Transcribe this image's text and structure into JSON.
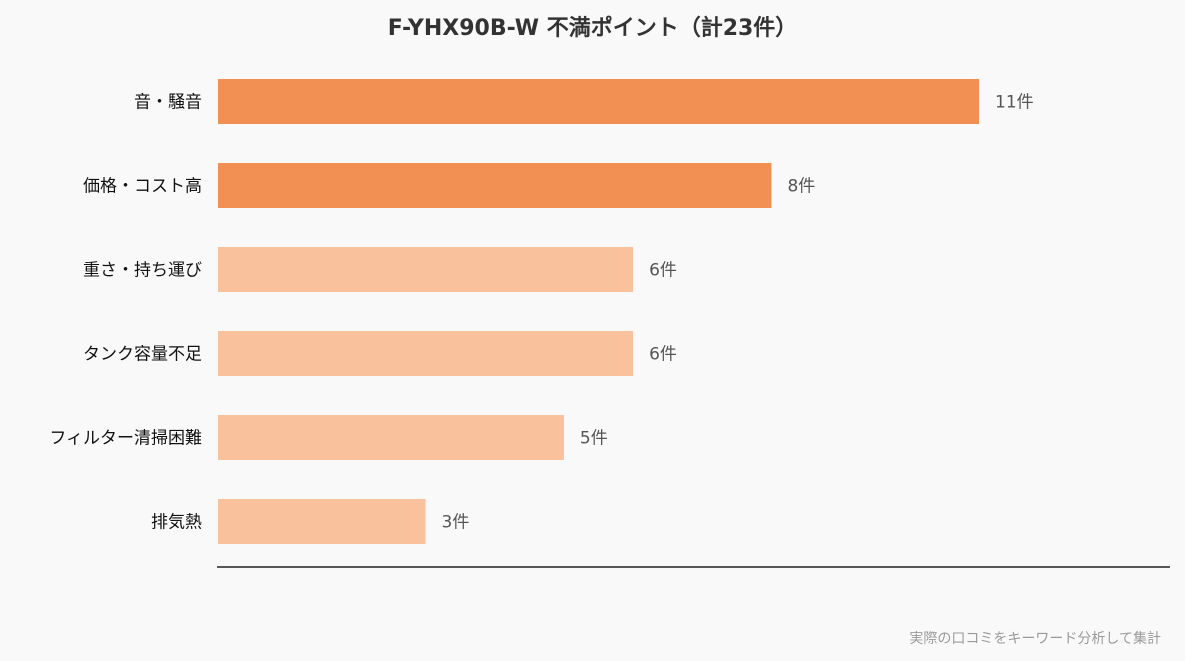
{
  "chart_data": {
    "type": "bar",
    "orientation": "horizontal",
    "title": "F-YHX90B-W 不満ポイント（計23件）",
    "categories": [
      "音・騒音",
      "価格・コスト高",
      "重さ・持ち運び",
      "タンク容量不足",
      "フィルター清掃困難",
      "排気熱"
    ],
    "values": [
      11,
      8,
      6,
      6,
      5,
      3
    ],
    "value_labels": [
      "11件",
      "8件",
      "6件",
      "6件",
      "5件",
      "3件"
    ],
    "xlim": [
      0,
      12
    ],
    "grid": false,
    "legend": "none",
    "note": "実際の口コミをキーワード分析して集計",
    "colors": {
      "highlight": "#f28f52",
      "normal": "#fac29c",
      "axis": "#222222",
      "category_label": "#111111",
      "value_label": "#555555"
    },
    "highlight_top": 2
  }
}
